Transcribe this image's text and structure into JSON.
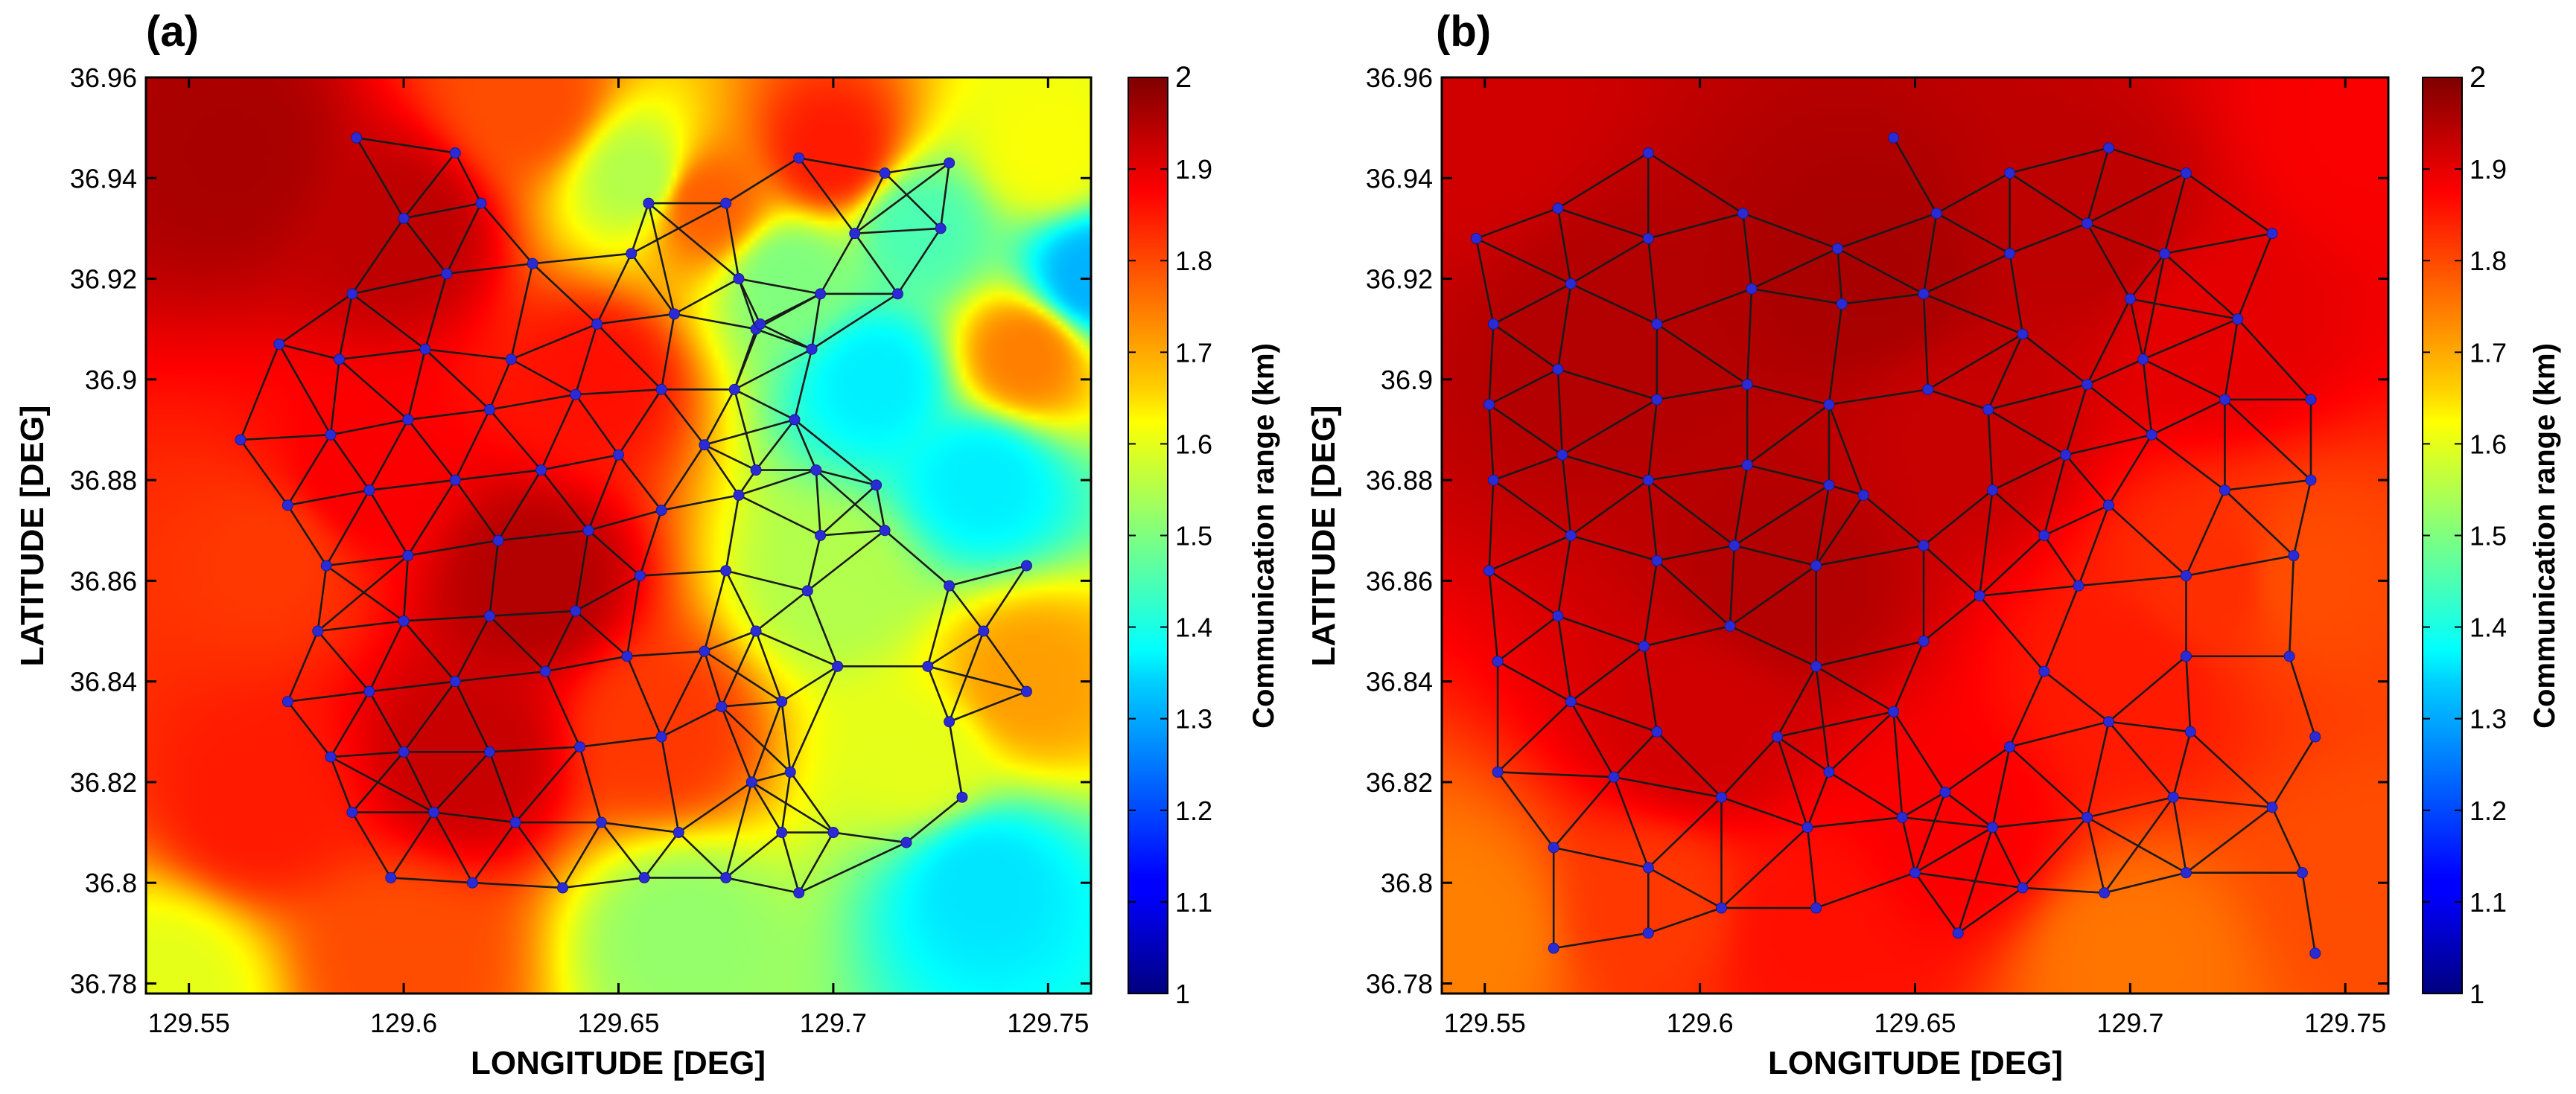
{
  "figure": {
    "panels": [
      "(a)",
      "(b)"
    ]
  },
  "colorbar": {
    "label": "Communication range (km)",
    "ticks": [
      "1",
      "1.1",
      "1.2",
      "1.3",
      "1.4",
      "1.5",
      "1.6",
      "1.7",
      "1.8",
      "1.9",
      "2"
    ],
    "range": [
      1,
      2
    ]
  },
  "axes": {
    "xlabel": "LONGITUDE [DEG]",
    "ylabel": "LATITUDE [DEG]",
    "xticks": [
      "129.55",
      "129.6",
      "129.65",
      "129.7",
      "129.75"
    ],
    "yticks": [
      "36.78",
      "36.8",
      "36.82",
      "36.84",
      "36.86",
      "36.88",
      "36.9",
      "36.92",
      "36.94",
      "36.96"
    ]
  },
  "colors": {
    "node": "#2b2bd6",
    "edge": "#1a1a1a",
    "text": "#000000"
  },
  "chart_data": [
    {
      "type": "heatmap",
      "title": "(a)",
      "xlabel": "LONGITUDE [DEG]",
      "ylabel": "LATITUDE [DEG]",
      "xlim": [
        129.54,
        129.76
      ],
      "ylim": [
        36.778,
        36.96
      ],
      "zlabel": "Communication range (km)",
      "zlim": [
        1,
        2
      ],
      "field_points": [
        [
          129.56,
          36.945,
          1.96
        ],
        [
          129.6,
          36.93,
          1.94
        ],
        [
          129.63,
          36.86,
          1.95
        ],
        [
          129.615,
          36.825,
          1.93
        ],
        [
          129.59,
          36.88,
          1.88
        ],
        [
          129.645,
          36.9,
          1.86
        ],
        [
          129.66,
          36.83,
          1.82
        ],
        [
          129.57,
          36.865,
          1.82
        ],
        [
          129.565,
          36.815,
          1.85
        ],
        [
          129.63,
          36.955,
          1.8
        ],
        [
          129.67,
          36.935,
          1.78
        ],
        [
          129.7,
          36.945,
          1.85
        ],
        [
          129.745,
          36.905,
          1.75
        ],
        [
          129.745,
          36.84,
          1.72
        ],
        [
          129.75,
          36.945,
          1.62
        ],
        [
          129.545,
          36.78,
          1.6
        ],
        [
          129.6,
          36.785,
          1.8
        ],
        [
          129.72,
          36.825,
          1.6
        ],
        [
          129.71,
          36.9,
          1.36
        ],
        [
          129.735,
          36.88,
          1.36
        ],
        [
          129.76,
          36.92,
          1.3
        ],
        [
          129.735,
          36.8,
          1.35
        ],
        [
          129.7,
          36.86,
          1.55
        ],
        [
          129.655,
          36.94,
          1.55
        ],
        [
          129.665,
          36.79,
          1.52
        ],
        [
          129.69,
          36.92,
          1.5
        ],
        [
          129.72,
          36.93,
          1.45
        ]
      ],
      "nodes": [
        [
          129.589,
          36.948
        ],
        [
          129.612,
          36.945
        ],
        [
          129.6,
          36.932
        ],
        [
          129.618,
          36.935
        ],
        [
          129.588,
          36.917
        ],
        [
          129.61,
          36.921
        ],
        [
          129.63,
          36.923
        ],
        [
          129.653,
          36.925
        ],
        [
          129.657,
          36.935
        ],
        [
          129.675,
          36.935
        ],
        [
          129.692,
          36.944
        ],
        [
          129.712,
          36.941
        ],
        [
          129.727,
          36.943
        ],
        [
          129.571,
          36.907
        ],
        [
          129.585,
          36.904
        ],
        [
          129.605,
          36.906
        ],
        [
          129.625,
          36.904
        ],
        [
          129.645,
          36.911
        ],
        [
          129.663,
          36.913
        ],
        [
          129.678,
          36.92
        ],
        [
          129.697,
          36.917
        ],
        [
          129.715,
          36.917
        ],
        [
          129.725,
          36.93
        ],
        [
          129.705,
          36.929
        ],
        [
          129.682,
          36.91
        ],
        [
          129.683,
          36.911
        ],
        [
          129.695,
          36.906
        ],
        [
          129.562,
          36.888
        ],
        [
          129.583,
          36.889
        ],
        [
          129.601,
          36.892
        ],
        [
          129.62,
          36.894
        ],
        [
          129.64,
          36.897
        ],
        [
          129.66,
          36.898
        ],
        [
          129.677,
          36.898
        ],
        [
          129.691,
          36.892
        ],
        [
          129.573,
          36.875
        ],
        [
          129.592,
          36.878
        ],
        [
          129.612,
          36.88
        ],
        [
          129.632,
          36.882
        ],
        [
          129.65,
          36.885
        ],
        [
          129.67,
          36.887
        ],
        [
          129.682,
          36.882
        ],
        [
          129.696,
          36.882
        ],
        [
          129.71,
          36.879
        ],
        [
          129.712,
          36.87
        ],
        [
          129.697,
          36.869
        ],
        [
          129.582,
          36.863
        ],
        [
          129.601,
          36.865
        ],
        [
          129.622,
          36.868
        ],
        [
          129.643,
          36.87
        ],
        [
          129.66,
          36.874
        ],
        [
          129.678,
          36.877
        ],
        [
          129.58,
          36.85
        ],
        [
          129.6,
          36.852
        ],
        [
          129.62,
          36.853
        ],
        [
          129.64,
          36.854
        ],
        [
          129.655,
          36.861
        ],
        [
          129.675,
          36.862
        ],
        [
          129.694,
          36.858
        ],
        [
          129.573,
          36.836
        ],
        [
          129.592,
          36.838
        ],
        [
          129.612,
          36.84
        ],
        [
          129.633,
          36.842
        ],
        [
          129.652,
          36.845
        ],
        [
          129.67,
          36.846
        ],
        [
          129.682,
          36.85
        ],
        [
          129.701,
          36.843
        ],
        [
          129.583,
          36.825
        ],
        [
          129.6,
          36.826
        ],
        [
          129.62,
          36.826
        ],
        [
          129.641,
          36.827
        ],
        [
          129.66,
          36.829
        ],
        [
          129.674,
          36.835
        ],
        [
          129.688,
          36.836
        ],
        [
          129.588,
          36.814
        ],
        [
          129.607,
          36.814
        ],
        [
          129.626,
          36.812
        ],
        [
          129.646,
          36.812
        ],
        [
          129.664,
          36.81
        ],
        [
          129.681,
          36.82
        ],
        [
          129.69,
          36.822
        ],
        [
          129.597,
          36.801
        ],
        [
          129.616,
          36.8
        ],
        [
          129.637,
          36.799
        ],
        [
          129.656,
          36.801
        ],
        [
          129.675,
          36.801
        ],
        [
          129.692,
          36.798
        ],
        [
          129.688,
          36.81
        ],
        [
          129.7,
          36.81
        ],
        [
          129.717,
          36.808
        ],
        [
          129.73,
          36.817
        ],
        [
          129.727,
          36.832
        ],
        [
          129.735,
          36.85
        ],
        [
          129.722,
          36.843
        ],
        [
          129.727,
          36.859
        ],
        [
          129.745,
          36.863
        ],
        [
          129.745,
          36.838
        ]
      ]
    },
    {
      "type": "heatmap",
      "title": "(b)",
      "xlabel": "LONGITUDE [DEG]",
      "ylabel": "LATITUDE [DEG]",
      "xlim": [
        129.54,
        129.76
      ],
      "ylim": [
        36.778,
        36.96
      ],
      "zlabel": "Communication range (km)",
      "zlim": [
        1,
        2
      ],
      "field_points": [
        [
          129.58,
          36.91,
          1.95
        ],
        [
          129.64,
          36.92,
          1.96
        ],
        [
          129.69,
          36.93,
          1.94
        ],
        [
          129.62,
          36.86,
          1.95
        ],
        [
          129.66,
          36.89,
          1.93
        ],
        [
          129.6,
          36.83,
          1.92
        ],
        [
          129.72,
          36.91,
          1.9
        ],
        [
          129.74,
          36.86,
          1.8
        ],
        [
          129.7,
          36.84,
          1.85
        ],
        [
          129.545,
          36.79,
          1.75
        ],
        [
          129.59,
          36.795,
          1.82
        ],
        [
          129.7,
          36.785,
          1.76
        ],
        [
          129.755,
          36.8,
          1.8
        ],
        [
          129.755,
          36.95,
          1.88
        ],
        [
          129.545,
          36.95,
          1.92
        ],
        [
          129.66,
          36.81,
          1.88
        ],
        [
          129.72,
          36.86,
          1.83
        ],
        [
          129.625,
          36.79,
          1.86
        ]
      ],
      "nodes": [
        [
          129.588,
          36.945
        ],
        [
          129.645,
          36.948
        ],
        [
          129.548,
          36.928
        ],
        [
          129.567,
          36.934
        ],
        [
          129.588,
          36.928
        ],
        [
          129.61,
          36.933
        ],
        [
          129.632,
          36.926
        ],
        [
          129.655,
          36.933
        ],
        [
          129.672,
          36.941
        ],
        [
          129.69,
          36.931
        ],
        [
          129.695,
          36.946
        ],
        [
          129.713,
          36.941
        ],
        [
          129.733,
          36.929
        ],
        [
          129.552,
          36.911
        ],
        [
          129.57,
          36.919
        ],
        [
          129.59,
          36.911
        ],
        [
          129.612,
          36.918
        ],
        [
          129.633,
          36.915
        ],
        [
          129.652,
          36.917
        ],
        [
          129.672,
          36.925
        ],
        [
          129.7,
          36.916
        ],
        [
          129.708,
          36.925
        ],
        [
          129.725,
          36.912
        ],
        [
          129.551,
          36.895
        ],
        [
          129.567,
          36.902
        ],
        [
          129.59,
          36.896
        ],
        [
          129.611,
          36.899
        ],
        [
          129.63,
          36.895
        ],
        [
          129.653,
          36.898
        ],
        [
          129.675,
          36.909
        ],
        [
          129.69,
          36.899
        ],
        [
          129.703,
          36.904
        ],
        [
          129.722,
          36.896
        ],
        [
          129.742,
          36.896
        ],
        [
          129.552,
          36.88
        ],
        [
          129.568,
          36.885
        ],
        [
          129.588,
          36.88
        ],
        [
          129.611,
          36.883
        ],
        [
          129.63,
          36.879
        ],
        [
          129.638,
          36.877
        ],
        [
          129.667,
          36.894
        ],
        [
          129.685,
          36.885
        ],
        [
          129.705,
          36.889
        ],
        [
          129.722,
          36.878
        ],
        [
          129.742,
          36.88
        ],
        [
          129.551,
          36.862
        ],
        [
          129.57,
          36.869
        ],
        [
          129.59,
          36.864
        ],
        [
          129.608,
          36.867
        ],
        [
          129.627,
          36.863
        ],
        [
          129.652,
          36.867
        ],
        [
          129.668,
          36.878
        ],
        [
          129.68,
          36.869
        ],
        [
          129.695,
          36.875
        ],
        [
          129.713,
          36.861
        ],
        [
          129.738,
          36.865
        ],
        [
          129.553,
          36.844
        ],
        [
          129.567,
          36.853
        ],
        [
          129.587,
          36.847
        ],
        [
          129.607,
          36.851
        ],
        [
          129.627,
          36.843
        ],
        [
          129.652,
          36.848
        ],
        [
          129.665,
          36.857
        ],
        [
          129.688,
          36.859
        ],
        [
          129.713,
          36.845
        ],
        [
          129.737,
          36.845
        ],
        [
          129.553,
          36.822
        ],
        [
          129.57,
          36.836
        ],
        [
          129.59,
          36.83
        ],
        [
          129.605,
          36.817
        ],
        [
          129.618,
          36.829
        ],
        [
          129.63,
          36.822
        ],
        [
          129.645,
          36.834
        ],
        [
          129.657,
          36.818
        ],
        [
          129.672,
          36.827
        ],
        [
          129.68,
          36.842
        ],
        [
          129.695,
          36.832
        ],
        [
          129.714,
          36.83
        ],
        [
          129.733,
          36.815
        ],
        [
          129.743,
          36.829
        ],
        [
          129.566,
          36.807
        ],
        [
          129.58,
          36.821
        ],
        [
          129.588,
          36.803
        ],
        [
          129.605,
          36.795
        ],
        [
          129.625,
          36.811
        ],
        [
          129.627,
          36.795
        ],
        [
          129.647,
          36.813
        ],
        [
          129.65,
          36.802
        ],
        [
          129.66,
          36.79
        ],
        [
          129.668,
          36.811
        ],
        [
          129.675,
          36.799
        ],
        [
          129.69,
          36.813
        ],
        [
          129.694,
          36.798
        ],
        [
          129.71,
          36.817
        ],
        [
          129.713,
          36.802
        ],
        [
          129.74,
          36.802
        ],
        [
          129.743,
          36.786
        ],
        [
          129.566,
          36.787
        ],
        [
          129.588,
          36.79
        ]
      ]
    }
  ]
}
